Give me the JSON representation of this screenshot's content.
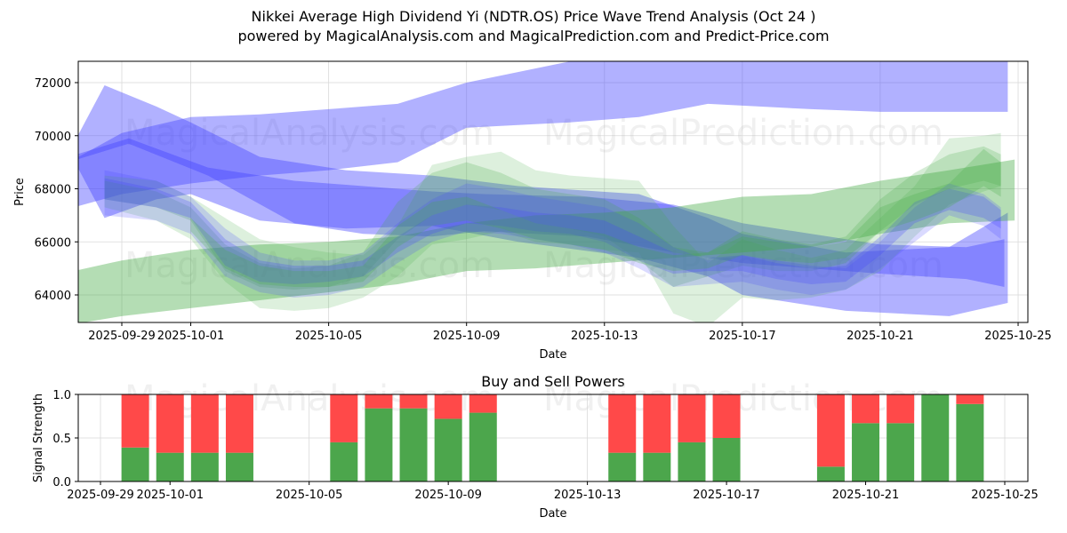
{
  "header": {
    "title": "Nikkei Average High Dividend Yi (NDTR.OS) Price Wave Trend Analysis (Oct 24 )",
    "subtitle": "powered by MagicalAnalysis.com and MagicalPrediction.com and Predict-Price.com"
  },
  "watermarks": [
    "MagicalAnalysis.com",
    "MagicalPrediction.com"
  ],
  "colors": {
    "blue_band": "#4444ff",
    "green_band": "#44aa44",
    "buy": "#4ca64c",
    "sell": "#ff4949",
    "grid": "#d9d9d9"
  },
  "chart_data": [
    {
      "type": "area",
      "title": "",
      "xlabel": "Date",
      "ylabel": "Price",
      "x_start_date": "2025-09-28",
      "xlim_days": [
        -0.65,
        26.9
      ],
      "ylim": [
        62900,
        72800
      ],
      "grid": true,
      "x_ticks": [
        "2025-09-29",
        "2025-10-01",
        "2025-10-05",
        "2025-10-09",
        "2025-10-13",
        "2025-10-17",
        "2025-10-21",
        "2025-10-25"
      ],
      "x_tick_days": [
        1,
        3,
        7,
        11,
        15,
        19,
        23,
        27
      ],
      "y_ticks": [
        64000,
        66000,
        68000,
        70000,
        72000
      ],
      "bands": [
        {
          "color": "blue",
          "alpha": 0.42,
          "x": [
            -0.4,
            0.5,
            2,
            3,
            5,
            7.5,
            10,
            12.5,
            16,
            18,
            19,
            22,
            25,
            26.7
          ],
          "upper": [
            69700,
            71900,
            71100,
            70500,
            69200,
            68700,
            68500,
            68100,
            67800,
            66900,
            66300,
            65600,
            65800,
            67100
          ],
          "lower": [
            69100,
            66900,
            67600,
            67800,
            66800,
            66500,
            66600,
            66000,
            65400,
            64700,
            64000,
            63400,
            63200,
            63700
          ]
        },
        {
          "color": "blue",
          "alpha": 0.42,
          "x": [
            -0.4,
            1,
            3,
            5,
            7,
            9,
            11,
            14,
            16,
            18,
            19.5,
            21,
            23,
            25,
            26.7
          ],
          "upper": [
            69100,
            70100,
            70700,
            70800,
            71000,
            71200,
            72000,
            72800,
            72900,
            73000,
            73000,
            73000,
            73000,
            73000,
            73000
          ],
          "lower": [
            67300,
            67800,
            68200,
            68500,
            68700,
            69000,
            70300,
            70500,
            70700,
            71200,
            71100,
            71000,
            70900,
            70900,
            70900
          ]
        },
        {
          "color": "blue",
          "alpha": 0.42,
          "x": [
            -0.3,
            1.2,
            3.5,
            6,
            8,
            10,
            11.5,
            14.5,
            17,
            19,
            21,
            23,
            25.5,
            26.6
          ],
          "upper": [
            69300,
            69900,
            68800,
            68300,
            68100,
            67900,
            67800,
            67700,
            67400,
            66700,
            66300,
            65900,
            65800,
            66100
          ],
          "lower": [
            69100,
            69700,
            68500,
            66700,
            66300,
            66200,
            66400,
            66200,
            65600,
            65200,
            65000,
            64800,
            64600,
            64300
          ]
        },
        {
          "color": "green",
          "alpha": 0.4,
          "x": [
            -0.4,
            1,
            3,
            5,
            7,
            9,
            11,
            13,
            15,
            17,
            19,
            21,
            23,
            25,
            26.9
          ],
          "upper": [
            64900,
            65300,
            65700,
            65900,
            66000,
            66200,
            66700,
            67000,
            67100,
            67300,
            67700,
            67800,
            68300,
            68700,
            69100
          ],
          "lower": [
            62900,
            63200,
            63500,
            63800,
            64100,
            64400,
            64900,
            65000,
            65200,
            65400,
            65600,
            65800,
            66300,
            66700,
            66800
          ]
        },
        {
          "color": "green",
          "alpha": 0.18,
          "x": [
            0.5,
            2,
            3,
            4,
            5,
            6,
            7,
            8,
            9,
            10,
            11,
            12,
            13,
            14,
            15,
            16,
            17,
            18,
            19,
            20,
            21,
            22,
            23,
            24,
            25,
            26,
            26.5
          ],
          "upper": [
            68500,
            68300,
            67700,
            66900,
            66100,
            65800,
            65600,
            65500,
            66600,
            68900,
            69200,
            69400,
            68700,
            68500,
            68400,
            68300,
            66600,
            65200,
            66100,
            65700,
            65400,
            65700,
            66900,
            68100,
            69900,
            70000,
            70100
          ],
          "lower": [
            67300,
            66800,
            66100,
            64500,
            63500,
            63400,
            63500,
            63900,
            64700,
            65900,
            66100,
            66400,
            66000,
            65900,
            65700,
            65600,
            63300,
            62800,
            63900,
            63800,
            63900,
            64200,
            64900,
            66200,
            67400,
            67900,
            68100
          ]
        },
        {
          "color": "green",
          "alpha": 0.22,
          "x": [
            0.5,
            2,
            3,
            4,
            5,
            6,
            7,
            8,
            9,
            10,
            11,
            12,
            13,
            14,
            15,
            16,
            17,
            18,
            19,
            20,
            21,
            22,
            23,
            24,
            25,
            26,
            26.5
          ],
          "upper": [
            68300,
            67900,
            67300,
            65900,
            65200,
            65000,
            65100,
            65600,
            67500,
            68600,
            69000,
            68600,
            68000,
            67800,
            67600,
            66900,
            65800,
            65600,
            66400,
            66100,
            65900,
            66200,
            67600,
            68600,
            69300,
            69600,
            69300
          ],
          "lower": [
            67600,
            67300,
            66800,
            64900,
            64300,
            64200,
            64300,
            64700,
            66100,
            67000,
            67400,
            67200,
            66700,
            66500,
            66200,
            65300,
            64300,
            64700,
            65100,
            64900,
            64900,
            65200,
            66400,
            67400,
            68000,
            68300,
            68100
          ]
        },
        {
          "color": "blue",
          "alpha": 0.2,
          "x": [
            0.5,
            2,
            3,
            4,
            5,
            6,
            7,
            8,
            9,
            10,
            11,
            12,
            13,
            14,
            15,
            16,
            17,
            18,
            19,
            20,
            21,
            22,
            23,
            24,
            25,
            26,
            26.5
          ],
          "upper": [
            68700,
            68300,
            67700,
            66500,
            65600,
            65300,
            65300,
            65600,
            66700,
            67600,
            68200,
            68000,
            67700,
            67500,
            67300,
            66700,
            65800,
            65300,
            65500,
            65300,
            65100,
            65000,
            66000,
            67300,
            68200,
            67800,
            67300
          ],
          "lower": [
            67000,
            66800,
            66300,
            64700,
            64100,
            63900,
            64000,
            64300,
            65200,
            66000,
            66400,
            66300,
            66100,
            65900,
            65600,
            65000,
            64300,
            64400,
            64500,
            64200,
            64000,
            64200,
            65000,
            66000,
            67000,
            66600,
            66100
          ]
        },
        {
          "color": "blue",
          "alpha": 0.25,
          "x": [
            0.5,
            2,
            3,
            4,
            5,
            6,
            7,
            8,
            9,
            10,
            11,
            12,
            13,
            14,
            15,
            16,
            17,
            18,
            19,
            20,
            21,
            22,
            23,
            24,
            25,
            26,
            26.5
          ],
          "upper": [
            68400,
            68000,
            67500,
            66100,
            65300,
            65100,
            65100,
            65300,
            66200,
            67000,
            67400,
            67300,
            67100,
            67000,
            66800,
            66200,
            65600,
            65400,
            65500,
            65200,
            65000,
            65100,
            66200,
            67500,
            68000,
            67700,
            67200
          ],
          "lower": [
            67600,
            67300,
            66900,
            65100,
            64500,
            64400,
            64500,
            64700,
            65600,
            66300,
            66700,
            66600,
            66400,
            66300,
            66000,
            65300,
            64800,
            64900,
            64900,
            64600,
            64400,
            64500,
            65500,
            66700,
            67200,
            66900,
            66500
          ]
        },
        {
          "color": "green",
          "alpha": 0.25,
          "x": [
            3,
            4,
            5,
            6,
            7,
            8,
            9,
            10,
            11,
            12,
            13,
            14,
            15,
            16,
            17,
            18,
            19,
            20,
            21,
            22,
            23,
            24,
            25,
            26,
            26.5
          ],
          "upper": [
            66900,
            65700,
            65100,
            64900,
            64900,
            65100,
            66600,
            67500,
            67700,
            67200,
            66700,
            66500,
            66300,
            65800,
            65500,
            65600,
            66200,
            66000,
            65800,
            66000,
            67300,
            67800,
            68200,
            69500,
            69000
          ],
          "lower": [
            66400,
            65000,
            64400,
            64300,
            64300,
            64500,
            65800,
            66600,
            66800,
            66500,
            66100,
            65900,
            65700,
            65200,
            64900,
            65000,
            65500,
            65300,
            65200,
            65400,
            66400,
            66800,
            67300,
            68100,
            67700
          ]
        }
      ]
    },
    {
      "type": "bar",
      "title": "Buy and Sell Powers",
      "xlabel": "Date",
      "ylabel": "Signal Strength",
      "ylim": [
        0,
        1
      ],
      "grid": true,
      "x_ticks": [
        "2025-09-29",
        "2025-10-01",
        "2025-10-05",
        "2025-10-09",
        "2025-10-13",
        "2025-10-17",
        "2025-10-21",
        "2025-10-25"
      ],
      "y_ticks": [
        "0.0",
        "0.5",
        "1.0"
      ],
      "categories": [
        "2025-09-30",
        "2025-10-01",
        "2025-10-02",
        "2025-10-03",
        "2025-10-06",
        "2025-10-07",
        "2025-10-08",
        "2025-10-09",
        "2025-10-10",
        "2025-10-14",
        "2025-10-15",
        "2025-10-16",
        "2025-10-17",
        "2025-10-20",
        "2025-10-21",
        "2025-10-22",
        "2025-10-23",
        "2025-10-24"
      ],
      "series": [
        {
          "name": "Buy",
          "values": [
            0.39,
            0.33,
            0.33,
            0.33,
            0.45,
            0.84,
            0.84,
            0.72,
            0.79,
            0.33,
            0.33,
            0.45,
            0.5,
            0.17,
            0.67,
            0.67,
            1.0,
            0.89
          ]
        },
        {
          "name": "Sell",
          "values": [
            0.61,
            0.67,
            0.67,
            0.67,
            0.55,
            0.16,
            0.16,
            0.28,
            0.21,
            0.67,
            0.67,
            0.55,
            0.5,
            0.83,
            0.33,
            0.33,
            0.0,
            0.11
          ]
        }
      ]
    }
  ]
}
